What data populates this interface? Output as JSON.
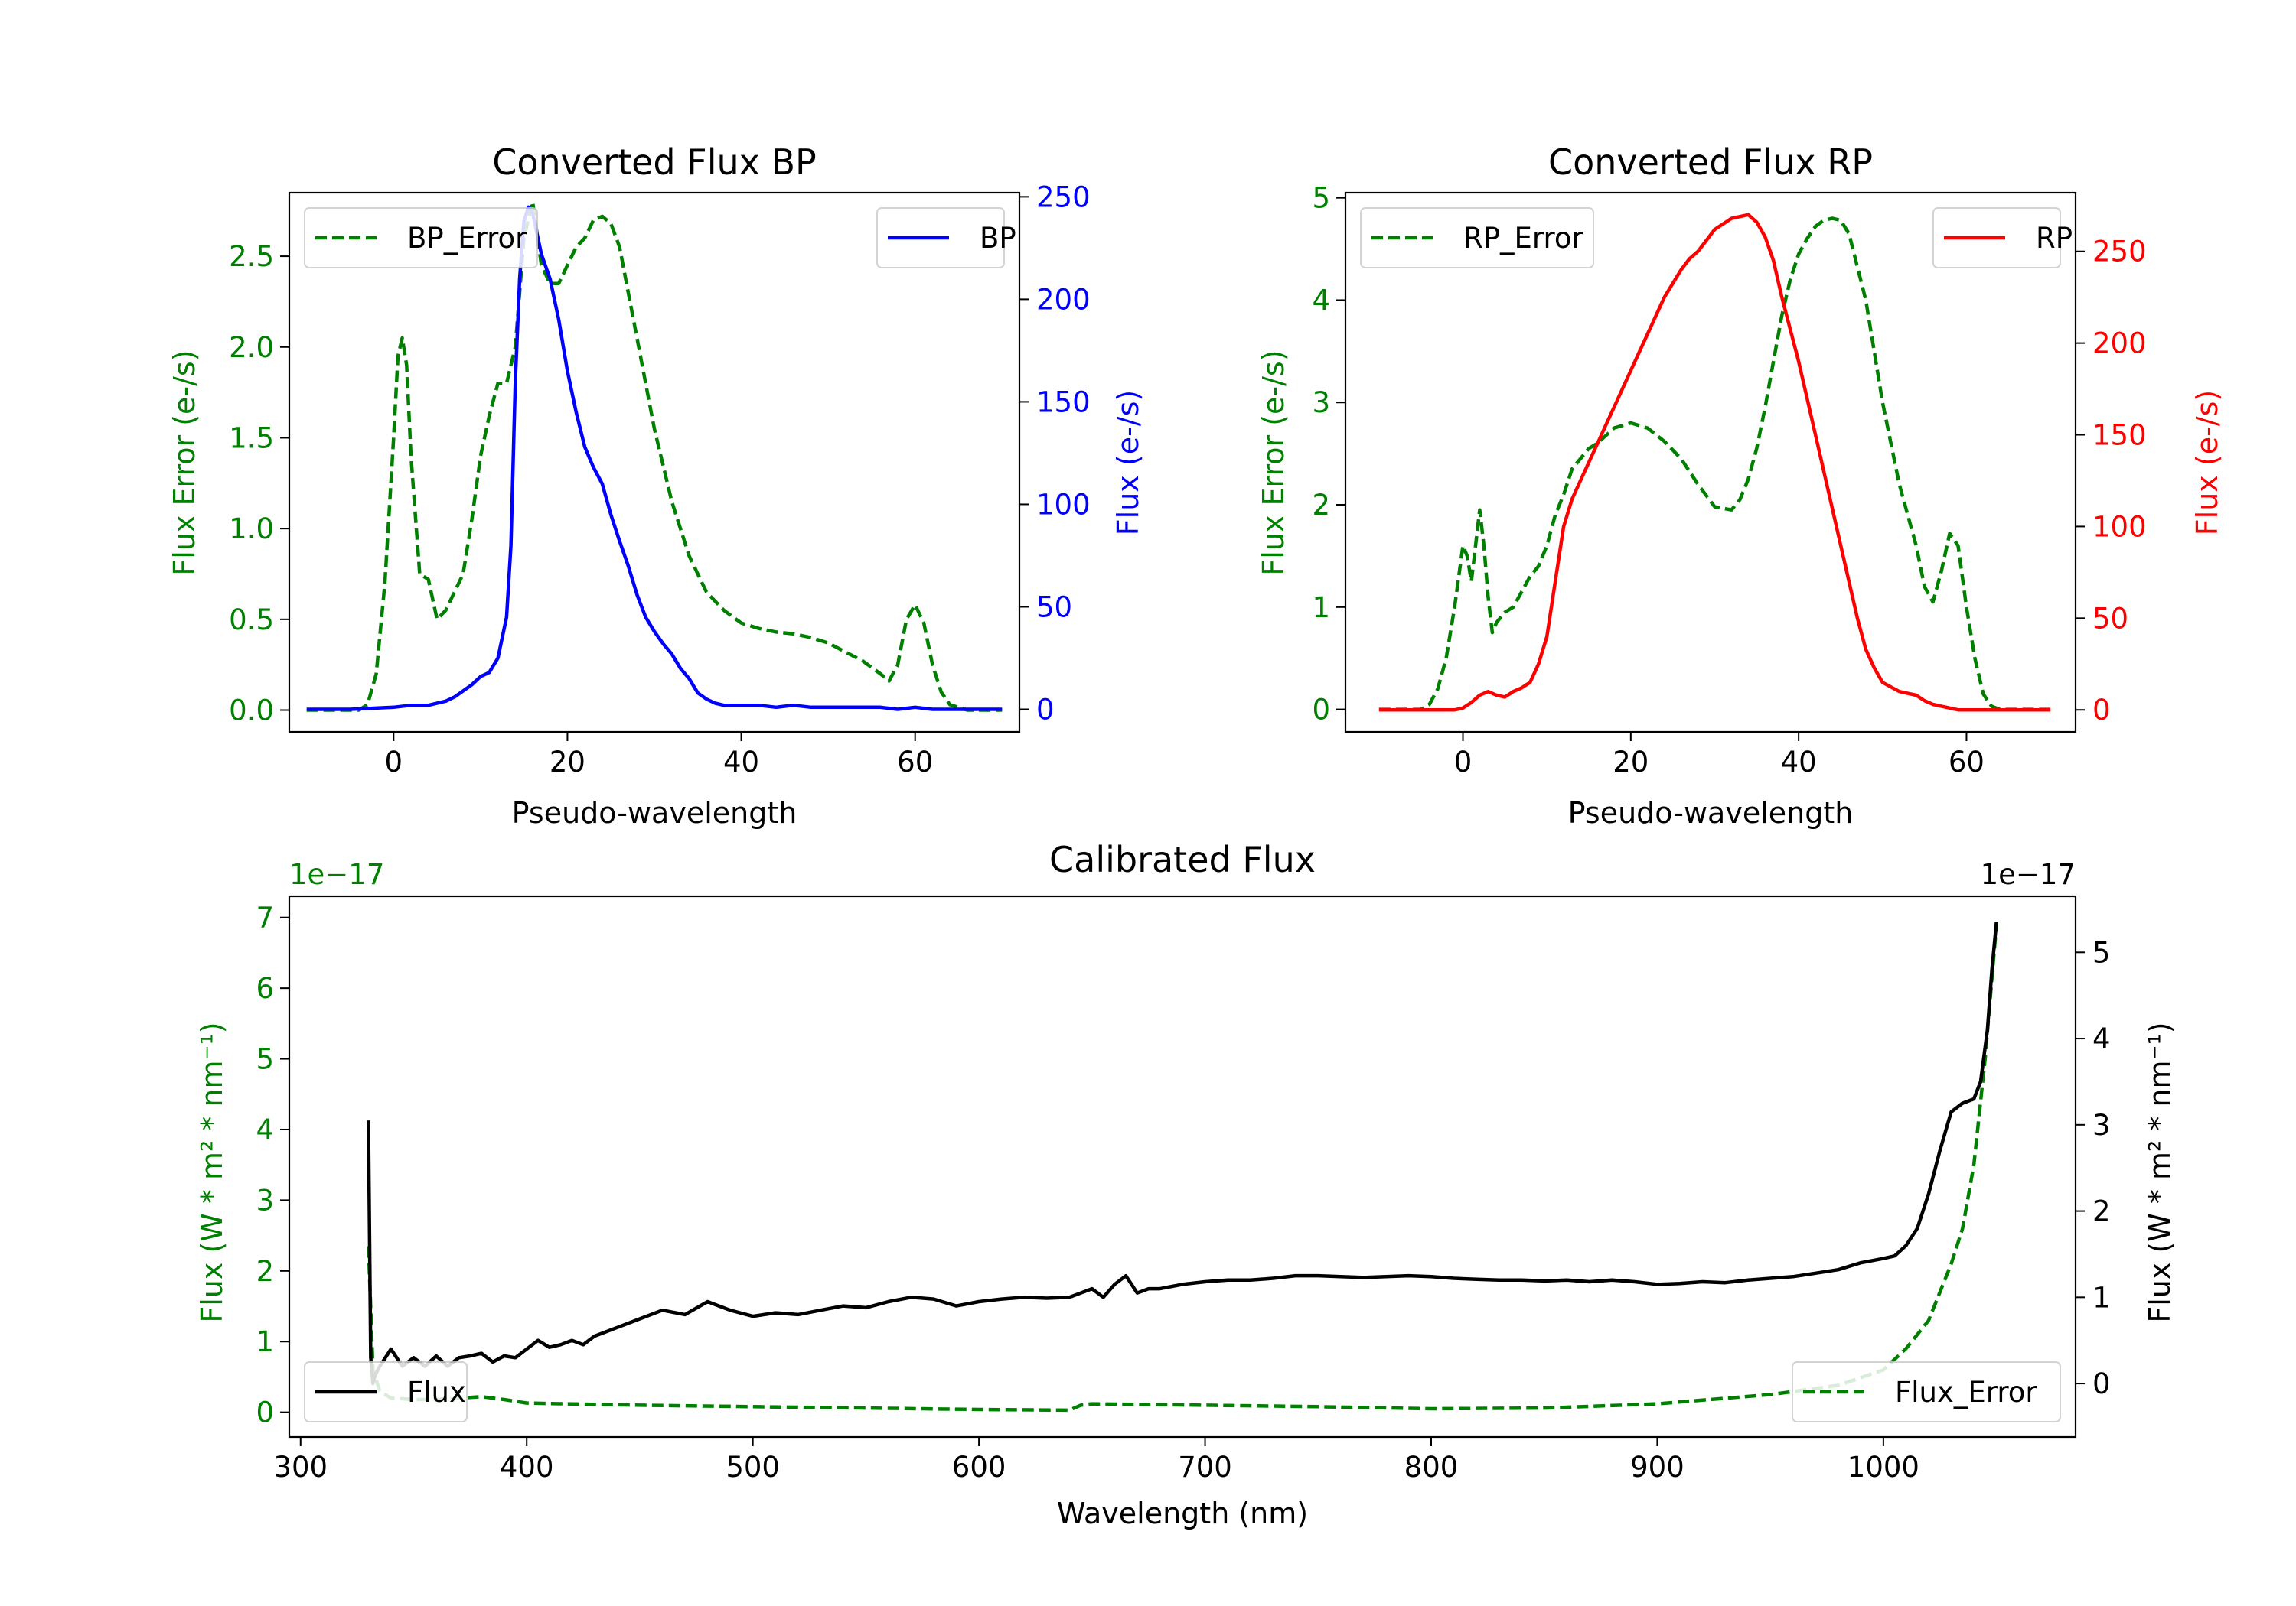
{
  "chart_data": [
    {
      "type": "line",
      "title": "Converted Flux BP",
      "xlabel": "Pseudo-wavelength",
      "xlim": [
        -12,
        72
      ],
      "xticks": [
        0,
        20,
        40,
        60
      ],
      "left_axis": {
        "label": "Flux Error (e-/s)",
        "color": "#008000",
        "lim": [
          -0.12,
          2.85
        ],
        "ticks": [
          0.0,
          0.5,
          1.0,
          1.5,
          2.0,
          2.5
        ],
        "tick_labels": [
          "0.0",
          "0.5",
          "1.0",
          "1.5",
          "2.0",
          "2.5"
        ]
      },
      "right_axis": {
        "label": "Flux (e-/s)",
        "color": "#0000ff",
        "lim": [
          -11,
          252
        ],
        "ticks": [
          0,
          50,
          100,
          150,
          200,
          250
        ],
        "tick_labels": [
          "0",
          "50",
          "100",
          "150",
          "200",
          "250"
        ]
      },
      "series": [
        {
          "name": "BP_Error",
          "axis": "left",
          "color": "#008000",
          "style": "dashed",
          "x": [
            -10,
            -4,
            -3,
            -2,
            -1,
            0,
            0.5,
            1,
            1.5,
            2,
            3,
            4,
            5,
            6,
            7,
            8,
            9,
            10,
            11,
            12,
            13,
            14,
            15,
            16,
            17,
            18,
            19,
            20,
            21,
            22,
            23,
            24,
            25,
            26,
            27,
            28,
            30,
            32,
            34,
            36,
            38,
            40,
            42,
            44,
            46,
            48,
            50,
            52,
            54,
            56,
            57,
            58,
            59,
            60,
            61,
            62,
            63,
            64,
            66,
            68,
            70
          ],
          "y": [
            0,
            0,
            0.03,
            0.2,
            0.7,
            1.5,
            1.95,
            2.05,
            1.9,
            1.4,
            0.75,
            0.72,
            0.5,
            0.55,
            0.65,
            0.75,
            1.05,
            1.4,
            1.62,
            1.8,
            1.8,
            2.0,
            2.6,
            2.8,
            2.45,
            2.35,
            2.35,
            2.45,
            2.55,
            2.6,
            2.7,
            2.72,
            2.68,
            2.55,
            2.3,
            2.05,
            1.55,
            1.15,
            0.85,
            0.65,
            0.55,
            0.48,
            0.45,
            0.43,
            0.42,
            0.4,
            0.37,
            0.32,
            0.27,
            0.2,
            0.16,
            0.25,
            0.5,
            0.58,
            0.48,
            0.25,
            0.1,
            0.03,
            0,
            0,
            0
          ]
        },
        {
          "name": "BP",
          "axis": "right",
          "color": "#0000ff",
          "style": "solid",
          "x": [
            -10,
            -5,
            0,
            2,
            4,
            6,
            7,
            8,
            9,
            10,
            11,
            12,
            13,
            13.5,
            14,
            14.5,
            15,
            15.5,
            16,
            16.5,
            17,
            18,
            19,
            20,
            21,
            22,
            23,
            24,
            25,
            26,
            27,
            28,
            29,
            30,
            31,
            32,
            33,
            34,
            35,
            36,
            37,
            38,
            40,
            42,
            44,
            46,
            48,
            50,
            52,
            54,
            56,
            58,
            60,
            62,
            64,
            66,
            68,
            70
          ],
          "y": [
            0,
            0,
            1,
            2,
            2,
            4,
            6,
            9,
            12,
            16,
            18,
            25,
            45,
            80,
            160,
            210,
            238,
            245,
            242,
            232,
            222,
            210,
            190,
            165,
            145,
            128,
            118,
            110,
            95,
            82,
            70,
            56,
            45,
            38,
            32,
            27,
            20,
            15,
            8,
            5,
            3,
            2,
            2,
            2,
            1,
            2,
            1,
            1,
            1,
            1,
            1,
            0,
            1,
            0,
            0,
            0,
            0,
            0
          ]
        }
      ],
      "legend": [
        {
          "label": "BP_Error",
          "position": "upper-left"
        },
        {
          "label": "BP",
          "position": "upper-right"
        }
      ]
    },
    {
      "type": "line",
      "title": "Converted Flux RP",
      "xlabel": "Pseudo-wavelength",
      "xlim": [
        -14,
        73
      ],
      "xticks": [
        0,
        20,
        40,
        60
      ],
      "left_axis": {
        "label": "Flux Error (e-/s)",
        "color": "#008000",
        "lim": [
          -0.22,
          5.05
        ],
        "ticks": [
          0,
          1,
          2,
          3,
          4,
          5
        ],
        "tick_labels": [
          "0",
          "1",
          "2",
          "3",
          "4",
          "5"
        ]
      },
      "right_axis": {
        "label": "Flux (e-/s)",
        "color": "#ff0000",
        "lim": [
          -12,
          282
        ],
        "ticks": [
          0,
          50,
          100,
          150,
          200,
          250
        ],
        "tick_labels": [
          "0",
          "50",
          "100",
          "150",
          "200",
          "250"
        ]
      },
      "series": [
        {
          "name": "RP_Error",
          "axis": "left",
          "color": "#008000",
          "style": "dashed",
          "x": [
            -10,
            -5,
            -4,
            -3,
            -2,
            -1,
            0,
            0.5,
            1,
            1.5,
            2,
            2.5,
            3,
            3.5,
            4,
            5,
            6,
            7,
            8,
            9,
            10,
            11,
            12,
            13,
            14,
            15,
            16,
            18,
            20,
            22,
            24,
            26,
            28,
            30,
            32,
            33,
            34,
            35,
            36,
            37,
            38,
            39,
            40,
            41,
            42,
            43,
            44,
            45,
            46,
            48,
            50,
            52,
            54,
            55,
            56,
            57,
            58,
            59,
            60,
            61,
            62,
            63,
            64,
            66,
            68,
            70
          ],
          "y": [
            0,
            0,
            0.05,
            0.2,
            0.5,
            1.0,
            1.6,
            1.5,
            1.25,
            1.6,
            1.95,
            1.6,
            1.1,
            0.75,
            0.85,
            0.95,
            1.0,
            1.15,
            1.3,
            1.4,
            1.6,
            1.9,
            2.1,
            2.35,
            2.45,
            2.55,
            2.6,
            2.75,
            2.8,
            2.75,
            2.62,
            2.45,
            2.2,
            1.98,
            1.95,
            2.05,
            2.25,
            2.55,
            2.95,
            3.4,
            3.85,
            4.2,
            4.45,
            4.6,
            4.72,
            4.78,
            4.8,
            4.78,
            4.65,
            4.0,
            3.0,
            2.2,
            1.6,
            1.2,
            1.05,
            1.35,
            1.72,
            1.6,
            1.0,
            0.5,
            0.15,
            0.03,
            0,
            0,
            0,
            0
          ]
        },
        {
          "name": "RP",
          "axis": "right",
          "color": "#ff0000",
          "style": "solid",
          "x": [
            -10,
            -5,
            -3,
            -1,
            0,
            1,
            2,
            3,
            4,
            5,
            6,
            7,
            8,
            9,
            10,
            11,
            12,
            13,
            14,
            15,
            16,
            17,
            18,
            20,
            22,
            24,
            26,
            27,
            28,
            30,
            32,
            34,
            35,
            36,
            37,
            38,
            40,
            42,
            44,
            46,
            47,
            48,
            49,
            50,
            52,
            54,
            55,
            56,
            57,
            58,
            59,
            60,
            62,
            64,
            66,
            68,
            70
          ],
          "y": [
            0,
            0,
            0,
            0,
            1,
            4,
            8,
            10,
            8,
            7,
            10,
            12,
            15,
            25,
            40,
            70,
            100,
            115,
            125,
            135,
            145,
            155,
            165,
            185,
            205,
            225,
            240,
            246,
            250,
            262,
            268,
            270,
            266,
            258,
            245,
            225,
            190,
            150,
            110,
            70,
            50,
            33,
            23,
            15,
            10,
            8,
            5,
            3,
            2,
            1,
            0,
            0,
            0,
            0,
            0,
            0,
            0
          ]
        }
      ],
      "legend": [
        {
          "label": "RP_Error",
          "position": "upper-left"
        },
        {
          "label": "RP",
          "position": "upper-right"
        }
      ]
    },
    {
      "type": "line",
      "title": "Calibrated Flux",
      "xlabel": "Wavelength (nm)",
      "xlim": [
        295,
        1085
      ],
      "xticks": [
        300,
        400,
        500,
        600,
        700,
        800,
        900,
        1000
      ],
      "left_axis": {
        "label": "Flux (W * m² * nm⁻¹)",
        "color": "#008000",
        "offset_text": "1e−17",
        "lim": [
          -0.35,
          7.3
        ],
        "ticks": [
          0,
          1,
          2,
          3,
          4,
          5,
          6,
          7
        ],
        "tick_labels": [
          "0",
          "1",
          "2",
          "3",
          "4",
          "5",
          "6",
          "7"
        ]
      },
      "right_axis": {
        "label": "Flux (W * m² * nm⁻¹)",
        "color": "#000000",
        "offset_text": "1e−17",
        "lim": [
          -0.62,
          5.65
        ],
        "ticks": [
          0,
          1,
          2,
          3,
          4,
          5
        ],
        "tick_labels": [
          "0",
          "1",
          "2",
          "3",
          "4",
          "5"
        ]
      },
      "series": [
        {
          "name": "Flux_Error",
          "axis": "left",
          "color": "#008000",
          "style": "dashed",
          "x": [
            330,
            332,
            335,
            340,
            350,
            360,
            370,
            380,
            390,
            400,
            450,
            500,
            550,
            600,
            640,
            645,
            650,
            700,
            750,
            800,
            850,
            900,
            950,
            980,
            1000,
            1010,
            1020,
            1030,
            1035,
            1040,
            1045,
            1050
          ],
          "y": [
            2.35,
            0.6,
            0.3,
            0.2,
            0.18,
            0.18,
            0.2,
            0.22,
            0.18,
            0.13,
            0.1,
            0.08,
            0.06,
            0.04,
            0.03,
            0.1,
            0.12,
            0.1,
            0.08,
            0.05,
            0.06,
            0.12,
            0.25,
            0.38,
            0.6,
            0.9,
            1.3,
            2.1,
            2.6,
            3.5,
            5.0,
            6.9
          ]
        },
        {
          "name": "Flux",
          "axis": "right",
          "color": "#000000",
          "style": "solid",
          "x": [
            330,
            331,
            332,
            333,
            335,
            340,
            345,
            350,
            355,
            360,
            365,
            370,
            375,
            380,
            385,
            390,
            395,
            400,
            405,
            410,
            415,
            420,
            425,
            430,
            440,
            450,
            460,
            470,
            480,
            485,
            490,
            500,
            510,
            520,
            530,
            540,
            550,
            560,
            570,
            580,
            590,
            600,
            610,
            620,
            630,
            640,
            645,
            650,
            655,
            660,
            665,
            670,
            675,
            680,
            690,
            700,
            710,
            720,
            730,
            740,
            750,
            760,
            770,
            780,
            790,
            800,
            810,
            820,
            830,
            840,
            850,
            860,
            870,
            880,
            890,
            900,
            910,
            920,
            930,
            940,
            950,
            960,
            970,
            980,
            990,
            1000,
            1005,
            1010,
            1015,
            1020,
            1025,
            1030,
            1035,
            1040,
            1043,
            1046,
            1048,
            1050
          ],
          "y": [
            3.05,
            0.3,
            0.0,
            0.1,
            0.2,
            0.4,
            0.2,
            0.3,
            0.2,
            0.32,
            0.2,
            0.3,
            0.32,
            0.35,
            0.25,
            0.32,
            0.3,
            0.4,
            0.5,
            0.42,
            0.45,
            0.5,
            0.45,
            0.55,
            0.65,
            0.75,
            0.85,
            0.8,
            0.95,
            0.9,
            0.85,
            0.78,
            0.82,
            0.8,
            0.85,
            0.9,
            0.88,
            0.95,
            1.0,
            0.98,
            0.9,
            0.95,
            0.98,
            1.0,
            0.99,
            1.0,
            1.05,
            1.1,
            1.0,
            1.15,
            1.25,
            1.05,
            1.1,
            1.1,
            1.15,
            1.18,
            1.2,
            1.2,
            1.22,
            1.25,
            1.25,
            1.24,
            1.23,
            1.24,
            1.25,
            1.24,
            1.22,
            1.21,
            1.2,
            1.2,
            1.19,
            1.2,
            1.18,
            1.2,
            1.18,
            1.15,
            1.16,
            1.18,
            1.17,
            1.2,
            1.22,
            1.24,
            1.28,
            1.32,
            1.4,
            1.45,
            1.48,
            1.6,
            1.8,
            2.2,
            2.7,
            3.15,
            3.25,
            3.3,
            3.5,
            4.1,
            4.8,
            5.35
          ]
        }
      ],
      "legend": [
        {
          "label": "Flux",
          "position": "lower-left"
        },
        {
          "label": "Flux_Error",
          "position": "lower-right"
        }
      ]
    }
  ]
}
